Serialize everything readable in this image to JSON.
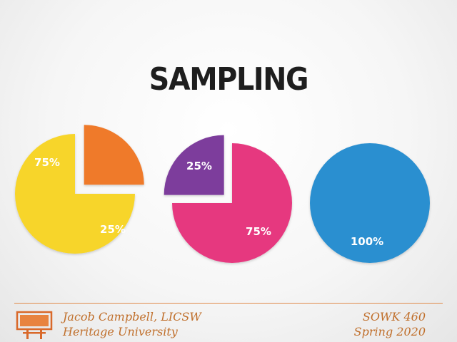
{
  "slide": {
    "title": "SAMPLING"
  },
  "footer": {
    "left_line1": "Jacob Campbell, LICSW",
    "left_line2": "Heritage University",
    "right_line1": "SOWK 460",
    "right_line2": "Spring 2020",
    "icon": "billboard-icon",
    "color": "#c06f2b"
  },
  "chart_data": [
    {
      "type": "pie",
      "slices": [
        {
          "label": "75%",
          "value": 75,
          "color": "#f7d52b",
          "exploded": false
        },
        {
          "label": "25%",
          "value": 25,
          "color": "#ef7a2c",
          "exploded": true
        }
      ]
    },
    {
      "type": "pie",
      "slices": [
        {
          "label": "75%",
          "value": 75,
          "color": "#e6397f",
          "exploded": false
        },
        {
          "label": "25%",
          "value": 25,
          "color": "#7d3e9c",
          "exploded": true
        }
      ]
    },
    {
      "type": "pie",
      "slices": [
        {
          "label": "100%",
          "value": 100,
          "color": "#2a8fd0",
          "exploded": false
        }
      ]
    }
  ]
}
